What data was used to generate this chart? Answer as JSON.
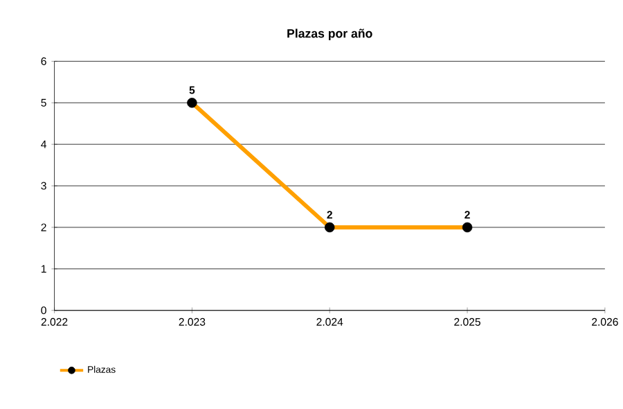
{
  "chart_data": {
    "type": "line",
    "title": "Plazas por año",
    "series": [
      {
        "name": "Plazas",
        "color": "#ffa000",
        "x": [
          2023,
          2024,
          2025
        ],
        "values": [
          5,
          2,
          2
        ]
      }
    ],
    "xlim": [
      2022,
      2026
    ],
    "xticks": [
      {
        "value": 2022,
        "label": "2.022"
      },
      {
        "value": 2023,
        "label": "2.023"
      },
      {
        "value": 2024,
        "label": "2.024"
      },
      {
        "value": 2025,
        "label": "2.025"
      },
      {
        "value": 2026,
        "label": "2.026"
      }
    ],
    "ylim": [
      0,
      6
    ],
    "yticks": [
      0,
      1,
      2,
      3,
      4,
      5,
      6
    ],
    "grid": "y",
    "legend": "bottom left",
    "marker": "circle",
    "line_style": "solid",
    "data_labels": true
  }
}
